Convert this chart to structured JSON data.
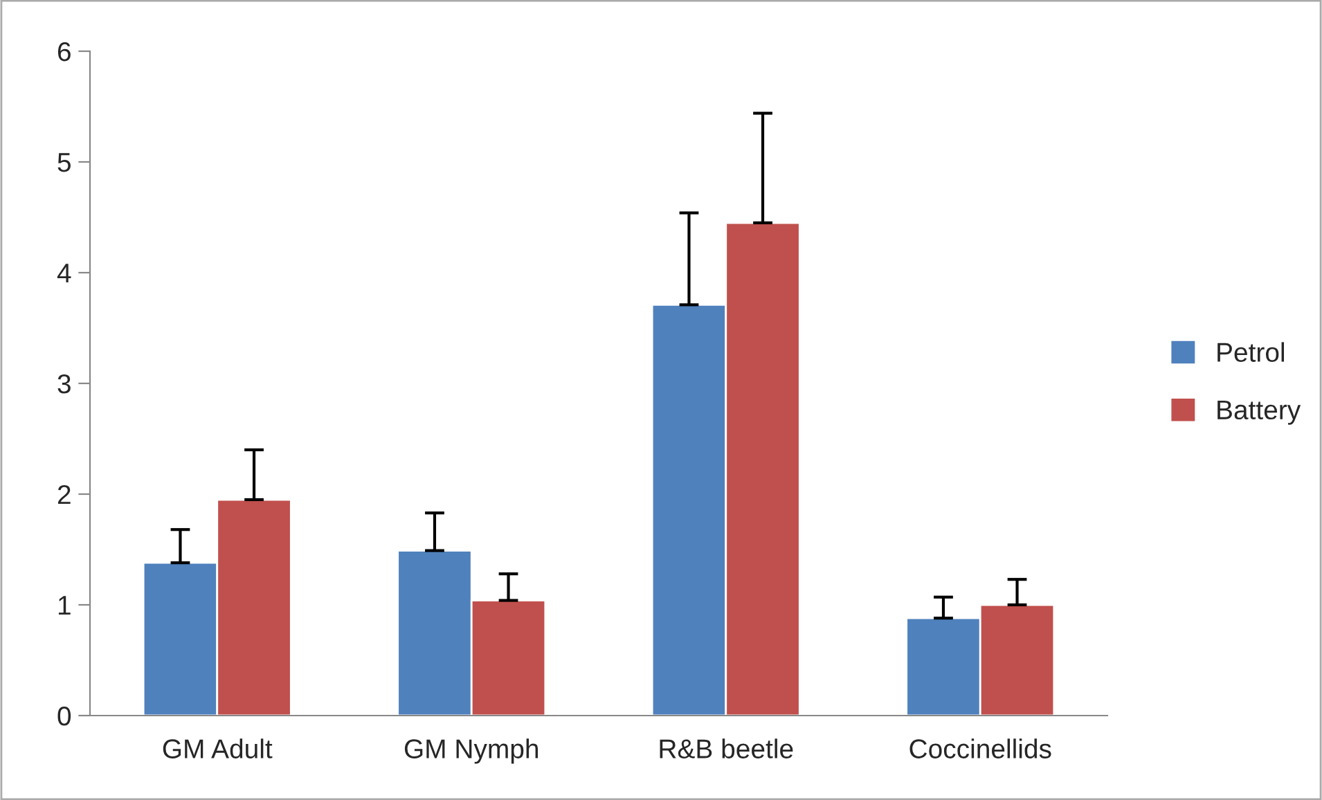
{
  "chart_data": {
    "type": "bar",
    "categories": [
      "GM Adult",
      "GM Nymph",
      "R&B beetle",
      "Coccinellids"
    ],
    "series": [
      {
        "name": "Petrol",
        "color": "#4f81bd",
        "values": [
          1.38,
          1.49,
          3.71,
          0.88
        ],
        "errors": [
          [
            1.38,
            1.68
          ],
          [
            1.49,
            1.83
          ],
          [
            3.71,
            4.54
          ],
          [
            0.88,
            1.07
          ]
        ]
      },
      {
        "name": "Battery",
        "color": "#c0504d",
        "values": [
          1.95,
          1.04,
          4.45,
          1.0
        ],
        "errors": [
          [
            1.95,
            2.4
          ],
          [
            1.04,
            1.28
          ],
          [
            4.45,
            5.44
          ],
          [
            1.0,
            1.23
          ]
        ]
      }
    ],
    "ylim": [
      0,
      6
    ],
    "yticks": [
      0,
      1,
      2,
      3,
      4,
      5,
      6
    ],
    "grid": false,
    "legend": "right"
  }
}
